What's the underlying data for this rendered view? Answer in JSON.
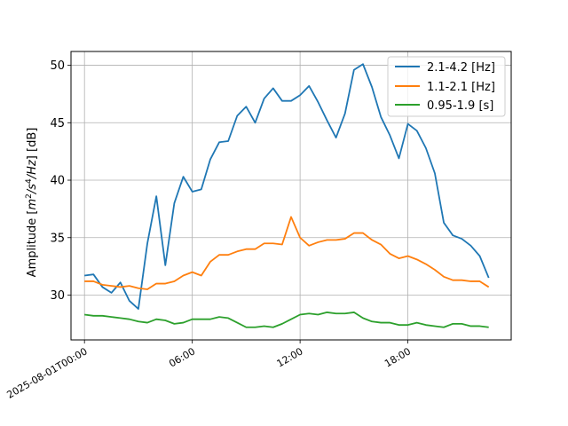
{
  "chart_data": {
    "type": "line",
    "title": "",
    "xlabel": "",
    "ylabel": "Amplitude [m²/s⁴/Hz] [dB]",
    "ylabel_parts": {
      "prefix": "Amplitude [",
      "m_base": "m",
      "m_exp": "2",
      "slash1": "/",
      "s_base": "s",
      "s_exp": "4",
      "slash2": "/",
      "hz": "Hz",
      "suffix": "] [dB]"
    },
    "x_tick_labels": [
      "2025-08-01T00:00",
      "06:00",
      "12:00",
      "18:00"
    ],
    "x_tick_hours": [
      0,
      6,
      12,
      18
    ],
    "xlim": [
      -0.75,
      23.75
    ],
    "ylim": [
      26.1,
      51.2
    ],
    "y_ticks": [
      30,
      35,
      40,
      45,
      50
    ],
    "grid": true,
    "legend_position": "upper right",
    "x": [
      0,
      0.5,
      1,
      1.5,
      2,
      2.5,
      3,
      3.5,
      4,
      4.5,
      5,
      5.5,
      6,
      6.5,
      7,
      7.5,
      8,
      8.5,
      9,
      9.5,
      10,
      10.5,
      11,
      11.5,
      12,
      12.5,
      13,
      13.5,
      14,
      14.5,
      15,
      15.5,
      16,
      16.5,
      17,
      17.5,
      18,
      18.5,
      19,
      19.5,
      20,
      20.5,
      21,
      21.5,
      22,
      22.5
    ],
    "series": [
      {
        "name": "2.1-4.2 [Hz]",
        "color": "#1f77b4",
        "values": [
          31.7,
          31.8,
          30.7,
          30.2,
          31.1,
          29.5,
          28.8,
          34.5,
          38.6,
          32.6,
          38.0,
          40.3,
          39.0,
          39.2,
          41.8,
          43.3,
          43.4,
          45.6,
          46.4,
          45.0,
          47.1,
          48.0,
          46.9,
          46.9,
          47.4,
          48.2,
          46.8,
          45.2,
          43.7,
          45.8,
          49.6,
          50.1,
          48.1,
          45.5,
          43.9,
          41.9,
          44.9,
          44.3,
          42.8,
          40.6,
          36.3,
          35.2,
          34.9,
          34.3,
          33.4,
          31.5
        ]
      },
      {
        "name": "1.1-2.1 [Hz]",
        "color": "#ff7f0e",
        "values": [
          31.2,
          31.2,
          30.9,
          30.8,
          30.7,
          30.8,
          30.6,
          30.5,
          31.0,
          31.0,
          31.2,
          31.7,
          32.0,
          31.7,
          32.9,
          33.5,
          33.5,
          33.8,
          34.0,
          34.0,
          34.5,
          34.5,
          34.4,
          36.8,
          35.0,
          34.3,
          34.6,
          34.8,
          34.8,
          34.9,
          35.4,
          35.4,
          34.8,
          34.4,
          33.6,
          33.2,
          33.4,
          33.1,
          32.7,
          32.2,
          31.6,
          31.3,
          31.3,
          31.2,
          31.2,
          30.7
        ]
      },
      {
        "name": "0.95-1.9 [s]",
        "color": "#2ca02c",
        "values": [
          28.3,
          28.2,
          28.2,
          28.1,
          28.0,
          27.9,
          27.7,
          27.6,
          27.9,
          27.8,
          27.5,
          27.6,
          27.9,
          27.9,
          27.9,
          28.1,
          28.0,
          27.6,
          27.2,
          27.2,
          27.3,
          27.2,
          27.5,
          27.9,
          28.3,
          28.4,
          28.3,
          28.5,
          28.4,
          28.4,
          28.5,
          28.0,
          27.7,
          27.6,
          27.6,
          27.4,
          27.4,
          27.6,
          27.4,
          27.3,
          27.2,
          27.5,
          27.5,
          27.3,
          27.3,
          27.2
        ]
      }
    ]
  }
}
